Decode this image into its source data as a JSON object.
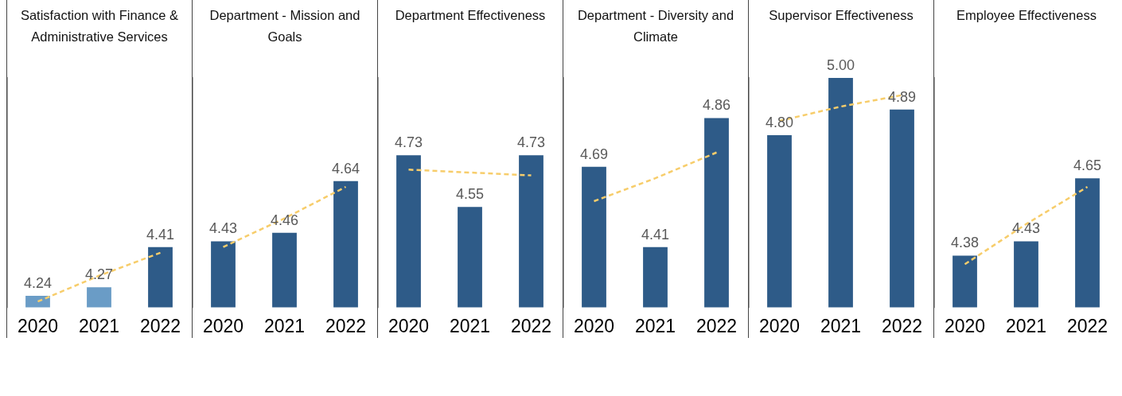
{
  "chart_data": [
    {
      "type": "bar",
      "title": "Satisfaction with Finance & Administrative Services",
      "categories": [
        "2020",
        "2021",
        "2022"
      ],
      "ylim": [
        4.2,
        5.0
      ],
      "series": [
        {
          "values": [
            4.24,
            4.27,
            4.41
          ],
          "colors": [
            "#6a9cc6",
            "#6a9cc6",
            "#2e5b88"
          ],
          "value_labels": [
            "4.24",
            "4.27",
            "4.41"
          ]
        },
        {
          "type": "line",
          "values": [
            4.22,
            4.31,
            4.39
          ],
          "color": "#f7cd6b",
          "line_style": "dashed",
          "marker": "none"
        }
      ]
    },
    {
      "type": "bar",
      "title": "Department - Mission and Goals",
      "categories": [
        "2020",
        "2021",
        "2022"
      ],
      "ylim": [
        4.2,
        5.0
      ],
      "series": [
        {
          "values": [
            4.43,
            4.46,
            4.64
          ],
          "colors": [
            "#2e5b88",
            "#2e5b88",
            "#2e5b88"
          ],
          "value_labels": [
            "4.43",
            "4.46",
            "4.64"
          ]
        },
        {
          "type": "line",
          "values": [
            4.41,
            4.51,
            4.62
          ],
          "color": "#f7cd6b",
          "line_style": "dashed",
          "marker": "none"
        }
      ]
    },
    {
      "type": "bar",
      "title": "Department Effectiveness",
      "categories": [
        "2020",
        "2021",
        "2022"
      ],
      "ylim": [
        4.2,
        5.0
      ],
      "series": [
        {
          "values": [
            4.73,
            4.55,
            4.73
          ],
          "colors": [
            "#2e5b88",
            "#2e5b88",
            "#2e5b88"
          ],
          "value_labels": [
            "4.73",
            "4.55",
            "4.73"
          ]
        },
        {
          "type": "line",
          "values": [
            4.68,
            4.67,
            4.66
          ],
          "color": "#f7cd6b",
          "line_style": "dashed",
          "marker": "none"
        }
      ]
    },
    {
      "type": "bar",
      "title": "Department - Diversity and Climate",
      "categories": [
        "2020",
        "2021",
        "2022"
      ],
      "ylim": [
        4.2,
        5.0
      ],
      "series": [
        {
          "values": [
            4.69,
            4.41,
            4.86
          ],
          "colors": [
            "#2e5b88",
            "#2e5b88",
            "#2e5b88"
          ],
          "value_labels": [
            "4.69",
            "4.41",
            "4.86"
          ]
        },
        {
          "type": "line",
          "values": [
            4.57,
            4.65,
            4.74
          ],
          "color": "#f7cd6b",
          "line_style": "dashed",
          "marker": "none"
        }
      ]
    },
    {
      "type": "bar",
      "title": "Supervisor Effectiveness",
      "categories": [
        "2020",
        "2021",
        "2022"
      ],
      "ylim": [
        4.2,
        5.0
      ],
      "series": [
        {
          "values": [
            4.8,
            5.0,
            4.89
          ],
          "colors": [
            "#2e5b88",
            "#2e5b88",
            "#2e5b88"
          ],
          "value_labels": [
            "4.80",
            "5.00",
            "4.89"
          ]
        },
        {
          "type": "line",
          "values": [
            4.85,
            4.9,
            4.94
          ],
          "color": "#f7cd6b",
          "line_style": "dashed",
          "marker": "none"
        }
      ]
    },
    {
      "type": "bar",
      "title": "Employee Effectiveness",
      "categories": [
        "2020",
        "2021",
        "2022"
      ],
      "ylim": [
        4.2,
        5.0
      ],
      "series": [
        {
          "values": [
            4.38,
            4.43,
            4.65
          ],
          "colors": [
            "#2e5b88",
            "#2e5b88",
            "#2e5b88"
          ],
          "value_labels": [
            "4.38",
            "4.43",
            "4.65"
          ]
        },
        {
          "type": "line",
          "values": [
            4.35,
            4.49,
            4.62
          ],
          "color": "#f7cd6b",
          "line_style": "dashed",
          "marker": "none"
        }
      ]
    }
  ]
}
